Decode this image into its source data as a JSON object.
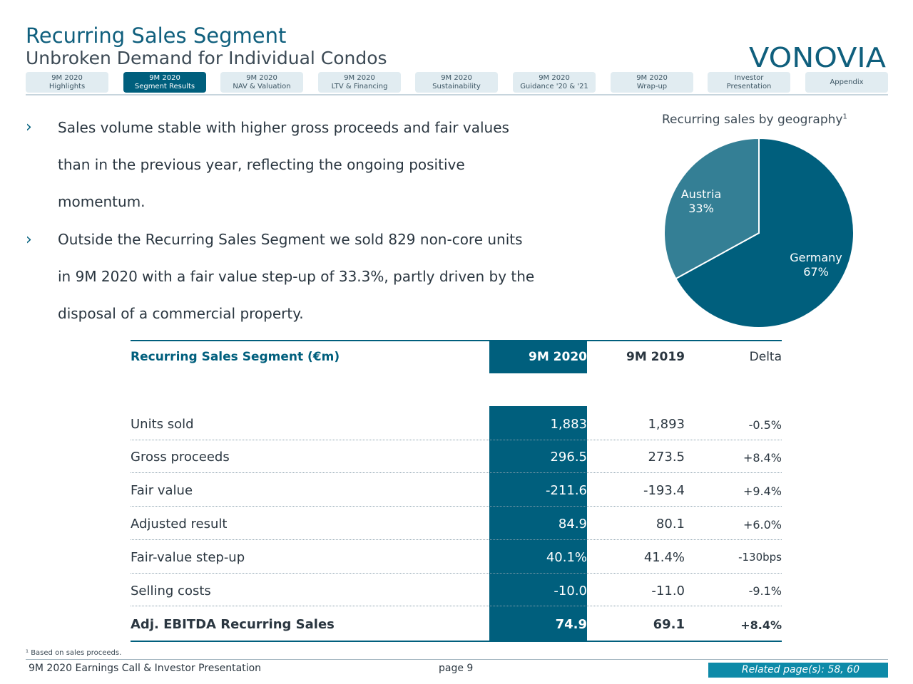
{
  "header": {
    "title": "Recurring Sales Segment",
    "subtitle": "Unbroken Demand for Individual Condos",
    "brand": "VONOVIA"
  },
  "nav": {
    "tabs": [
      {
        "line1": "9M 2020",
        "line2": "Highlights"
      },
      {
        "line1": "9M 2020",
        "line2": "Segment Results",
        "active": true
      },
      {
        "line1": "9M 2020",
        "line2": "NAV & Valuation"
      },
      {
        "line1": "9M 2020",
        "line2": "LTV & Financing"
      },
      {
        "line1": "9M 2020",
        "line2": "Sustainability"
      },
      {
        "line1": "9M 2020",
        "line2": "Guidance '20 & '21"
      },
      {
        "line1": "9M 2020",
        "line2": "Wrap-up"
      },
      {
        "line1": "Investor",
        "line2": "Presentation"
      },
      {
        "line1": "Appendix",
        "line2": ""
      }
    ]
  },
  "bullets": [
    {
      "lines": [
        "Sales volume stable with higher gross proceeds and fair values",
        "than in the previous year, reflecting the ongoing positive",
        "momentum."
      ]
    },
    {
      "lines": [
        "Outside the Recurring Sales Segment we sold 829 non-core units",
        "in 9M 2020 with a fair value step-up of 33.3%, partly driven by the",
        "disposal of a commercial property."
      ]
    }
  ],
  "chart_data": {
    "type": "pie",
    "title": "Recurring sales by geography",
    "title_footnote": "1",
    "slices": [
      {
        "label": "Germany",
        "value": 67,
        "value_label": "67%",
        "color": "#005f7d"
      },
      {
        "label": "Austria",
        "value": 33,
        "value_label": "33%",
        "color": "#347f95"
      }
    ]
  },
  "table": {
    "header": {
      "label": "Recurring Sales Segment (€m)",
      "col1": "9M 2020",
      "col2": "9M 2019",
      "col3": "Delta"
    },
    "rows": [
      {
        "label": "Units sold",
        "col1": "1,883",
        "col2": "1,893",
        "col3": "-0.5%"
      },
      {
        "label": "Gross proceeds",
        "col1": "296.5",
        "col2": "273.5",
        "col3": "+8.4%"
      },
      {
        "label": "Fair value",
        "col1": "-211.6",
        "col2": "-193.4",
        "col3": "+9.4%"
      },
      {
        "label": "Adjusted result",
        "col1": "84.9",
        "col2": "80.1",
        "col3": "+6.0%"
      },
      {
        "label": "Fair-value step-up",
        "col1": "40.1%",
        "col2": "41.4%",
        "col3": "-130bps"
      },
      {
        "label": "Selling costs",
        "col1": "-10.0",
        "col2": "-11.0",
        "col3": "-9.1%"
      },
      {
        "label": "Adj. EBITDA Recurring Sales",
        "col1": "74.9",
        "col2": "69.1",
        "col3": "+8.4%",
        "bold": true
      }
    ]
  },
  "footer": {
    "footnote": "¹ Based on sales proceeds.",
    "left": "9M 2020 Earnings Call & Investor Presentation",
    "page": "page 9",
    "related": "Related page(s): 58, 60"
  },
  "colors": {
    "primary": "#005f7d",
    "secondary": "#347f95",
    "tab_bg": "#e1ecf1",
    "related_bg": "#0e8aa8"
  }
}
